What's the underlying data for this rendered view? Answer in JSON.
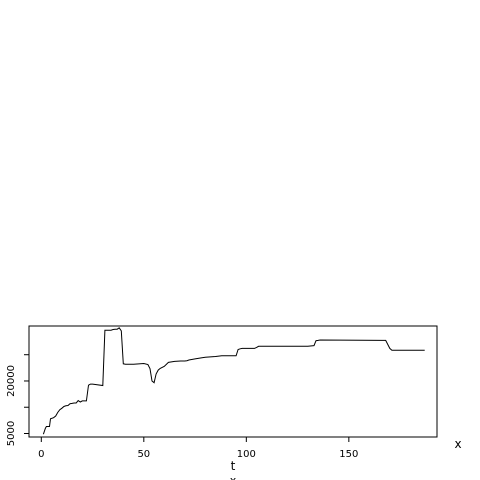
{
  "chart_data": {
    "type": "line",
    "title": "",
    "xlabel": "t",
    "ylabel": "",
    "corner_label": "x",
    "sub_label": "x",
    "xlim": [
      -6,
      193
    ],
    "ylim": [
      4000,
      35700
    ],
    "xticks": [
      0,
      50,
      100,
      150
    ],
    "yticks": [
      5000,
      20000
    ],
    "ytick_labels": [
      "5000",
      "20000"
    ],
    "yticks_unlabeled": [
      12500,
      27500
    ],
    "grid": false,
    "series": [
      {
        "x": [
          1,
          2,
          2.5,
          4,
          4.5,
          6,
          7,
          8,
          9,
          10,
          11,
          12,
          13,
          14,
          15,
          16,
          17,
          18,
          19,
          20,
          21,
          22,
          23,
          24,
          25,
          30,
          31,
          34,
          35,
          36,
          37,
          38,
          39,
          40,
          41,
          42,
          43,
          45,
          50,
          52,
          53,
          54,
          55,
          56,
          57,
          58,
          60,
          62,
          65,
          68,
          70,
          71,
          72,
          75,
          78,
          80,
          85,
          88,
          90,
          94,
          95,
          96,
          97,
          98,
          104,
          105,
          106,
          107,
          108,
          130,
          133,
          134,
          135,
          136,
          168,
          170,
          171,
          172,
          187
        ],
        "y": [
          4800,
          6500,
          7000,
          7000,
          9200,
          9500,
          10000,
          11000,
          11800,
          12200,
          12700,
          12900,
          13000,
          13500,
          13600,
          13700,
          13700,
          14400,
          14000,
          14300,
          14300,
          14300,
          18800,
          19100,
          19100,
          18700,
          34500,
          34500,
          34700,
          34800,
          34800,
          35200,
          34300,
          24900,
          24800,
          24800,
          24800,
          24800,
          25000,
          24700,
          23500,
          20000,
          19500,
          22000,
          23100,
          23600,
          24200,
          25300,
          25600,
          25700,
          25700,
          25800,
          26000,
          26300,
          26600,
          26800,
          27000,
          27200,
          27200,
          27200,
          27200,
          29000,
          29200,
          29300,
          29300,
          29600,
          29900,
          29900,
          29900,
          29900,
          30100,
          31500,
          31600,
          31700,
          31600,
          29300,
          28800,
          28800,
          28800
        ]
      }
    ]
  }
}
